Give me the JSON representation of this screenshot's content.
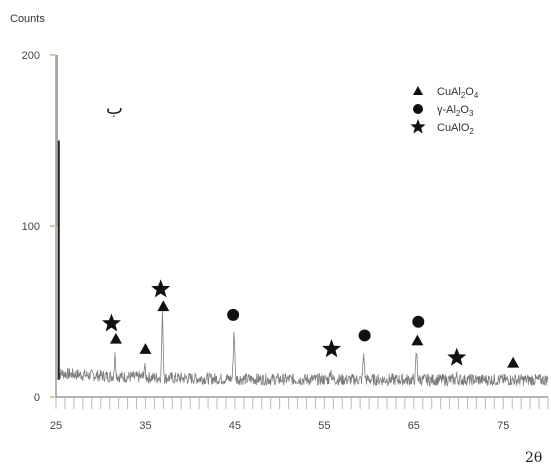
{
  "chart_data": {
    "type": "line",
    "ylabel": "Counts",
    "xlabel": "2θ",
    "panel_label": "ب",
    "xlim": [
      25,
      80
    ],
    "ylim": [
      0,
      200
    ],
    "x_ticks": [
      25,
      35,
      45,
      55,
      65,
      75
    ],
    "y_ticks": [
      0,
      100,
      200
    ],
    "baseline_counts": 10,
    "peaks": [
      {
        "x": 31.6,
        "y": 22
      },
      {
        "x": 34.9,
        "y": 16
      },
      {
        "x": 36.9,
        "y": 46
      },
      {
        "x": 44.9,
        "y": 38
      },
      {
        "x": 55.7,
        "y": 16
      },
      {
        "x": 59.4,
        "y": 25
      },
      {
        "x": 65.3,
        "y": 26
      },
      {
        "x": 69.8,
        "y": 12
      },
      {
        "x": 76.0,
        "y": 10
      }
    ],
    "markers": [
      {
        "x": 31.7,
        "y": 34,
        "phase": "CuAl2O4"
      },
      {
        "x": 31.2,
        "y": 43,
        "phase": "CuAlO2"
      },
      {
        "x": 35.0,
        "y": 28,
        "phase": "CuAl2O4"
      },
      {
        "x": 37.0,
        "y": 53,
        "phase": "CuAl2O4"
      },
      {
        "x": 36.7,
        "y": 63,
        "phase": "CuAlO2"
      },
      {
        "x": 44.8,
        "y": 48,
        "phase": "γ-Al2O3"
      },
      {
        "x": 55.8,
        "y": 28,
        "phase": "CuAlO2"
      },
      {
        "x": 59.5,
        "y": 36,
        "phase": "γ-Al2O3"
      },
      {
        "x": 65.4,
        "y": 33,
        "phase": "CuAl2O4"
      },
      {
        "x": 65.5,
        "y": 44,
        "phase": "γ-Al2O3"
      },
      {
        "x": 69.8,
        "y": 23,
        "phase": "CuAlO2"
      },
      {
        "x": 76.1,
        "y": 20,
        "phase": "CuAl2O4"
      }
    ],
    "legend": [
      {
        "symbol": "triangle",
        "base": "CuAl",
        "sub1": "2",
        "mid": "O",
        "sub2": "4"
      },
      {
        "symbol": "circle",
        "base": "γ-Al",
        "sub1": "2",
        "mid": "O",
        "sub2": "3"
      },
      {
        "symbol": "star",
        "base": "CuAlO",
        "sub1": "2",
        "mid": "",
        "sub2": ""
      }
    ],
    "legend_position": "top-right"
  }
}
